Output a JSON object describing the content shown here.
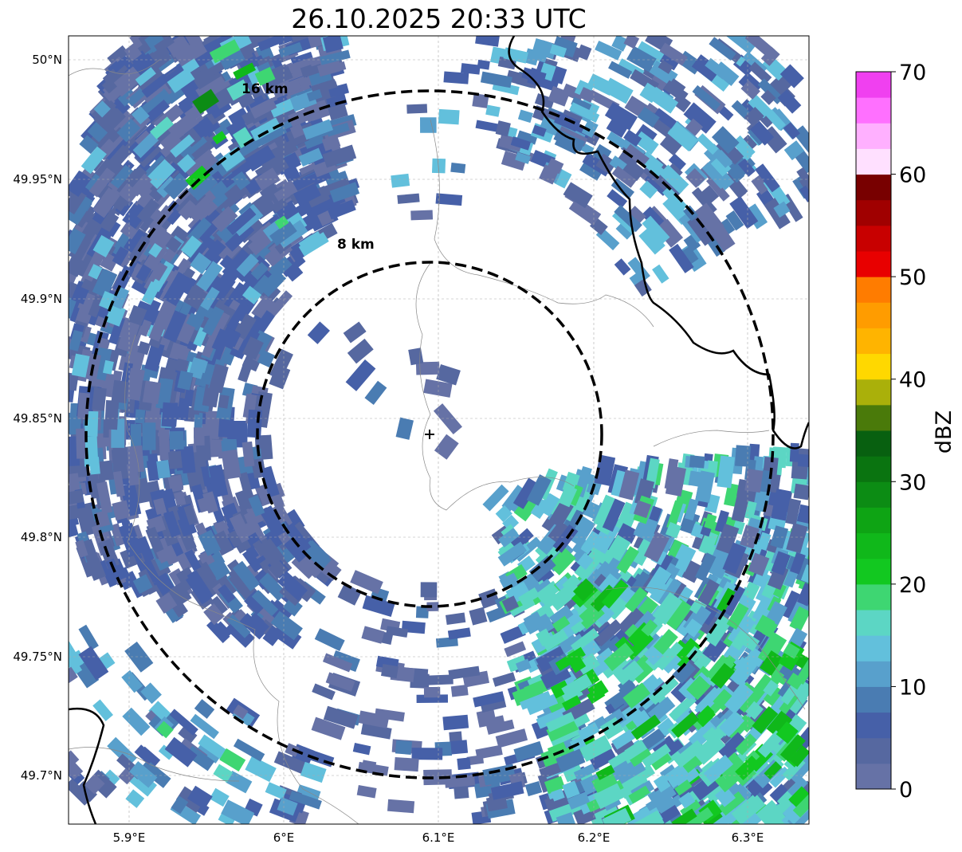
{
  "title": "26.10.2025 20:33 UTC",
  "map": {
    "lon_ticks": [
      "5.9°E",
      "6°E",
      "6.1°E",
      "6.2°E",
      "6.3°E"
    ],
    "lat_ticks": [
      "50°N",
      "49.95°N",
      "49.9°N",
      "49.85°N",
      "49.8°N",
      "49.75°N",
      "49.7°N"
    ],
    "range_rings": [
      {
        "label": "8 km",
        "radius_km": 8
      },
      {
        "label": "16 km",
        "radius_km": 16
      }
    ]
  },
  "colorbar": {
    "label": "dBZ",
    "tick_labels": [
      "0",
      "10",
      "20",
      "30",
      "40",
      "50",
      "60",
      "70"
    ],
    "min": 0,
    "max": 70,
    "step": 2.5,
    "colors": [
      "#6672a6",
      "#5668a0",
      "#4660a8",
      "#4a7cb2",
      "#58a0cc",
      "#62c0dc",
      "#5cd6c4",
      "#3ed672",
      "#12c820",
      "#10b81a",
      "#0ea414",
      "#0c8c14",
      "#0a7410",
      "#086010",
      "#4a7a0a",
      "#aab00a",
      "#ffd800",
      "#ffb400",
      "#ff9c00",
      "#ff7c00",
      "#e80000",
      "#c80000",
      "#a00000",
      "#780000",
      "#ffe0ff",
      "#ffb0ff",
      "#ff70ff",
      "#f040f0"
    ]
  }
}
